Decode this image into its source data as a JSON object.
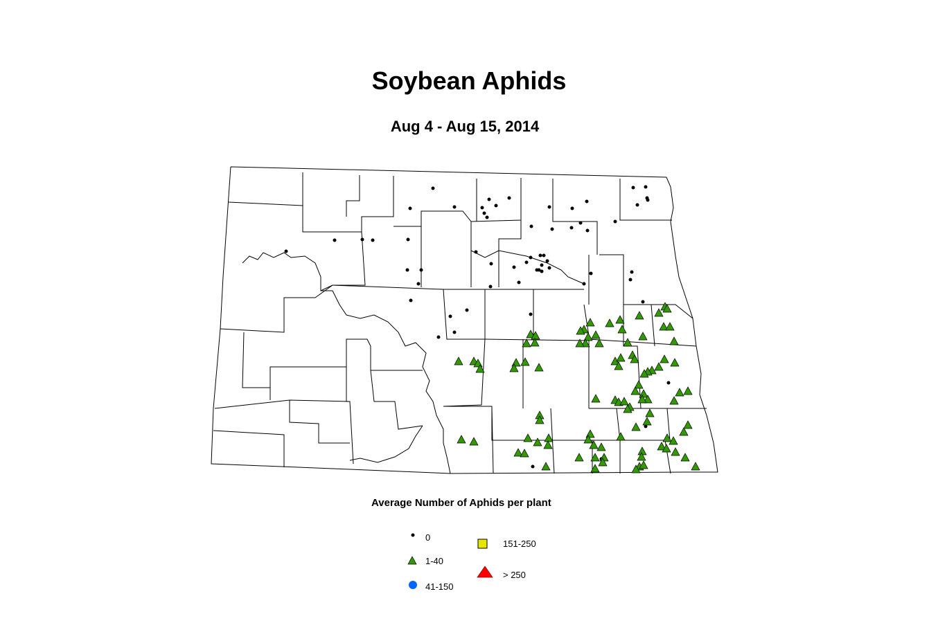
{
  "title": "Soybean Aphids",
  "subtitle": "Aug 4 - Aug 15, 2014",
  "legend": {
    "title": "Average Number of Aphids per plant",
    "items": [
      {
        "label": "0",
        "symbol": "dot",
        "color": "#000000"
      },
      {
        "label": "1-40",
        "symbol": "triangle",
        "color": "#339900"
      },
      {
        "label": "41-150",
        "symbol": "circle",
        "color": "#0066ff"
      },
      {
        "label": "151-250",
        "symbol": "square",
        "color": "#e6e600"
      },
      {
        "label": "> 250",
        "symbol": "triangle",
        "color": "#ff0000"
      }
    ]
  }
}
